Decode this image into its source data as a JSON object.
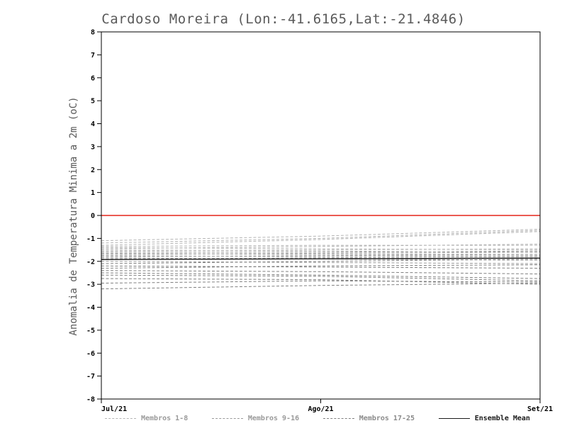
{
  "chart_data": {
    "type": "line",
    "title": "Cardoso Moreira (Lon:-41.6165,Lat:-21.4846)",
    "ylabel": "Anomalia de Temperatura Minima a 2m (oC)",
    "xlabel": "",
    "ylim": [
      -8,
      8
    ],
    "ytick_step": 1,
    "x_ticks": [
      "Jul/21",
      "Ago/21",
      "Set/21"
    ],
    "grid": "off",
    "legend_position": "bottom",
    "colors": {
      "zero_line": "#e8433a",
      "member_groups": [
        "#b4b4b4",
        "#9a9a9a",
        "#808080"
      ],
      "ensemble_mean": "#1a1a1a",
      "axis": "#000000",
      "title": "#5a5a5a"
    },
    "zero_line_y": 0,
    "series": [
      {
        "name": "Membro 1",
        "group": 0,
        "values": [
          -1.1,
          -0.9,
          -0.6
        ]
      },
      {
        "name": "Membro 2",
        "group": 0,
        "values": [
          -1.2,
          -1.0,
          -0.65
        ]
      },
      {
        "name": "Membro 3",
        "group": 0,
        "values": [
          -1.3,
          -1.05,
          -0.7
        ]
      },
      {
        "name": "Membro 4",
        "group": 0,
        "values": [
          -1.35,
          -1.3,
          -1.3
        ]
      },
      {
        "name": "Membro 5",
        "group": 0,
        "values": [
          -1.4,
          -1.45,
          -1.5
        ]
      },
      {
        "name": "Membro 6",
        "group": 0,
        "values": [
          -1.45,
          -1.35,
          -1.25
        ]
      },
      {
        "name": "Membro 7",
        "group": 0,
        "values": [
          -1.5,
          -1.55,
          -1.6
        ]
      },
      {
        "name": "Membro 8",
        "group": 0,
        "values": [
          -1.55,
          -1.5,
          -1.45
        ]
      },
      {
        "name": "Membro 9",
        "group": 1,
        "values": [
          -1.6,
          -1.6,
          -1.55
        ]
      },
      {
        "name": "Membro 10",
        "group": 1,
        "values": [
          -1.65,
          -1.7,
          -1.7
        ]
      },
      {
        "name": "Membro 11",
        "group": 1,
        "values": [
          -1.7,
          -1.65,
          -1.6
        ]
      },
      {
        "name": "Membro 12",
        "group": 1,
        "values": [
          -1.75,
          -1.8,
          -1.75
        ]
      },
      {
        "name": "Membro 13",
        "group": 1,
        "values": [
          -1.8,
          -1.75,
          -1.7
        ]
      },
      {
        "name": "Membro 14",
        "group": 1,
        "values": [
          -1.85,
          -1.9,
          -1.95
        ]
      },
      {
        "name": "Membro 15",
        "group": 1,
        "values": [
          -1.9,
          -1.85,
          -1.8
        ]
      },
      {
        "name": "Membro 16",
        "group": 1,
        "values": [
          -2.0,
          -2.05,
          -2.1
        ]
      },
      {
        "name": "Membro 17",
        "group": 2,
        "values": [
          -2.1,
          -2.0,
          -1.9
        ]
      },
      {
        "name": "Membro 18",
        "group": 2,
        "values": [
          -2.2,
          -2.25,
          -2.3
        ]
      },
      {
        "name": "Membro 19",
        "group": 2,
        "values": [
          -2.3,
          -2.2,
          -2.15
        ]
      },
      {
        "name": "Membro 20",
        "group": 2,
        "values": [
          -2.4,
          -2.45,
          -2.55
        ]
      },
      {
        "name": "Membro 21",
        "group": 2,
        "values": [
          -2.5,
          -2.6,
          -2.75
        ]
      },
      {
        "name": "Membro 22",
        "group": 2,
        "values": [
          -2.6,
          -2.65,
          -2.85
        ]
      },
      {
        "name": "Membro 23",
        "group": 2,
        "values": [
          -2.75,
          -2.8,
          -3.0
        ]
      },
      {
        "name": "Membro 24",
        "group": 2,
        "values": [
          -2.95,
          -2.85,
          -2.9
        ]
      },
      {
        "name": "Membro 25",
        "group": 2,
        "values": [
          -3.2,
          -3.05,
          -2.95
        ]
      }
    ],
    "ensemble_mean": {
      "name": "Ensemble Mean",
      "values": [
        -1.92,
        -1.89,
        -1.86
      ]
    },
    "legend": [
      {
        "label": "Membros 1-8",
        "style": "dashed",
        "color": "#b4b4b4",
        "label_color": "#9a9a9a"
      },
      {
        "label": "Membros 9-16",
        "style": "dashed",
        "color": "#9a9a9a",
        "label_color": "#9a9a9a"
      },
      {
        "label": "Membros 17-25",
        "style": "dashed",
        "color": "#808080",
        "label_color": "#8a8a8a"
      },
      {
        "label": "Ensemble Mean",
        "style": "solid",
        "color": "#1a1a1a",
        "label_color": "#1a1a1a"
      }
    ]
  }
}
